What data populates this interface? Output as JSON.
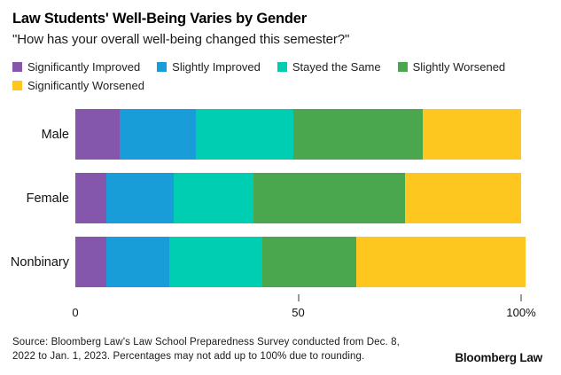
{
  "header": {
    "title": "Law Students' Well-Being Varies by Gender",
    "subtitle": "\"How has your overall well-being changed this semester?\""
  },
  "chart_data": {
    "type": "bar",
    "orientation": "horizontal",
    "stacked": true,
    "title": "Law Students' Well-Being Varies by Gender",
    "subtitle": "\"How has your overall well-being changed this semester?\"",
    "categories": [
      "Male",
      "Female",
      "Nonbinary"
    ],
    "series": [
      {
        "name": "Significantly Improved",
        "color": "#8457ac",
        "values": [
          10,
          7,
          7
        ]
      },
      {
        "name": "Slightly Improved",
        "color": "#189dd9",
        "values": [
          17,
          15,
          14
        ]
      },
      {
        "name": "Stayed the Same",
        "color": "#00ceb3",
        "values": [
          22,
          18,
          21
        ]
      },
      {
        "name": "Slightly Worsened",
        "color": "#4ba74e",
        "values": [
          29,
          34,
          21
        ]
      },
      {
        "name": "Significantly Worsened",
        "color": "#fdc71f",
        "values": [
          22,
          26,
          38
        ]
      }
    ],
    "xlabel": "",
    "ylabel": "",
    "xlim": [
      0,
      100
    ],
    "x_ticks": [
      {
        "label": "0",
        "pct": 0,
        "tick": false
      },
      {
        "label": "50",
        "pct": 50,
        "tick": true
      },
      {
        "label": "100%",
        "pct": 100,
        "tick": true
      }
    ],
    "legend_position": "top",
    "grid": false,
    "note": "Nonbinary percentages sum to 101 due to rounding; bar extends slightly past 100%"
  },
  "source": {
    "lines": [
      "Source: Bloomberg Law's Law School Preparedness Survey conducted from Dec. 8,",
      "2022 to Jan. 1, 2023. Percentages may not add up to 100% due to rounding."
    ]
  },
  "brand": {
    "logo_text": "Bloomberg Law"
  }
}
